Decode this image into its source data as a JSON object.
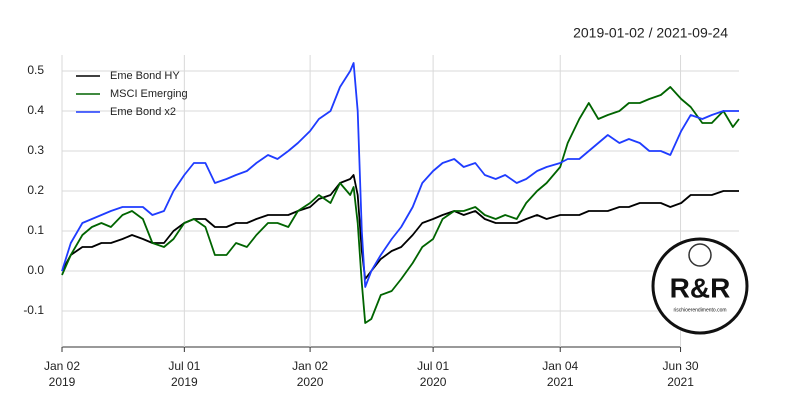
{
  "chart_data": {
    "type": "line",
    "subtitle": "2019-01-02 / 2021-09-24",
    "x": [
      "2019-01-02",
      "2019-01-15",
      "2019-02-01",
      "2019-02-15",
      "2019-03-01",
      "2019-03-15",
      "2019-04-01",
      "2019-04-15",
      "2019-05-01",
      "2019-05-15",
      "2019-06-01",
      "2019-06-15",
      "2019-07-01",
      "2019-07-15",
      "2019-08-01",
      "2019-08-15",
      "2019-09-01",
      "2019-09-15",
      "2019-10-01",
      "2019-10-15",
      "2019-11-01",
      "2019-11-15",
      "2019-12-01",
      "2019-12-15",
      "2020-01-02",
      "2020-01-15",
      "2020-02-01",
      "2020-02-15",
      "2020-03-01",
      "2020-03-06",
      "2020-03-12",
      "2020-03-18",
      "2020-03-23",
      "2020-04-01",
      "2020-04-15",
      "2020-05-01",
      "2020-05-15",
      "2020-06-01",
      "2020-06-15",
      "2020-07-01",
      "2020-07-15",
      "2020-08-01",
      "2020-08-15",
      "2020-09-01",
      "2020-09-15",
      "2020-10-01",
      "2020-10-15",
      "2020-11-01",
      "2020-11-15",
      "2020-12-01",
      "2020-12-15",
      "2021-01-04",
      "2021-01-15",
      "2021-02-01",
      "2021-02-15",
      "2021-03-01",
      "2021-03-15",
      "2021-04-01",
      "2021-04-15",
      "2021-05-01",
      "2021-05-15",
      "2021-06-01",
      "2021-06-15",
      "2021-07-01",
      "2021-07-15",
      "2021-08-01",
      "2021-08-15",
      "2021-09-01",
      "2021-09-15",
      "2021-09-24"
    ],
    "series": [
      {
        "name": "Eme Bond HY",
        "color": "#000000",
        "values": [
          0.0,
          0.04,
          0.06,
          0.06,
          0.07,
          0.07,
          0.08,
          0.09,
          0.08,
          0.07,
          0.07,
          0.1,
          0.12,
          0.13,
          0.13,
          0.11,
          0.11,
          0.12,
          0.12,
          0.13,
          0.14,
          0.14,
          0.14,
          0.15,
          0.16,
          0.18,
          0.19,
          0.22,
          0.23,
          0.24,
          0.19,
          0.05,
          -0.02,
          0.0,
          0.03,
          0.05,
          0.06,
          0.09,
          0.12,
          0.13,
          0.14,
          0.15,
          0.14,
          0.15,
          0.13,
          0.12,
          0.12,
          0.12,
          0.13,
          0.14,
          0.13,
          0.14,
          0.14,
          0.14,
          0.15,
          0.15,
          0.15,
          0.16,
          0.16,
          0.17,
          0.17,
          0.17,
          0.16,
          0.17,
          0.19,
          0.19,
          0.19,
          0.2,
          0.2,
          0.2
        ]
      },
      {
        "name": "MSCI Emerging",
        "color": "#006400",
        "values": [
          -0.01,
          0.04,
          0.09,
          0.11,
          0.12,
          0.11,
          0.14,
          0.15,
          0.13,
          0.07,
          0.06,
          0.08,
          0.12,
          0.13,
          0.11,
          0.04,
          0.04,
          0.07,
          0.06,
          0.09,
          0.12,
          0.12,
          0.11,
          0.15,
          0.17,
          0.19,
          0.17,
          0.22,
          0.19,
          0.21,
          0.12,
          -0.03,
          -0.13,
          -0.12,
          -0.06,
          -0.05,
          -0.02,
          0.02,
          0.06,
          0.08,
          0.13,
          0.15,
          0.15,
          0.16,
          0.14,
          0.13,
          0.14,
          0.13,
          0.17,
          0.2,
          0.22,
          0.26,
          0.32,
          0.38,
          0.42,
          0.38,
          0.39,
          0.4,
          0.42,
          0.42,
          0.43,
          0.44,
          0.46,
          0.43,
          0.41,
          0.37,
          0.37,
          0.4,
          0.36,
          0.38
        ]
      },
      {
        "name": "Eme Bond x2",
        "color": "#1f3cff",
        "values": [
          0.0,
          0.07,
          0.12,
          0.13,
          0.14,
          0.15,
          0.16,
          0.16,
          0.16,
          0.14,
          0.15,
          0.2,
          0.24,
          0.27,
          0.27,
          0.22,
          0.23,
          0.24,
          0.25,
          0.27,
          0.29,
          0.28,
          0.3,
          0.32,
          0.35,
          0.38,
          0.4,
          0.46,
          0.5,
          0.52,
          0.4,
          0.1,
          -0.04,
          0.0,
          0.04,
          0.08,
          0.11,
          0.16,
          0.22,
          0.25,
          0.27,
          0.28,
          0.26,
          0.27,
          0.24,
          0.23,
          0.24,
          0.22,
          0.23,
          0.25,
          0.26,
          0.27,
          0.28,
          0.28,
          0.3,
          0.32,
          0.34,
          0.32,
          0.33,
          0.32,
          0.3,
          0.3,
          0.29,
          0.35,
          0.39,
          0.38,
          0.39,
          0.4,
          0.4,
          0.4
        ]
      }
    ],
    "xlim": [
      "2019-01-02",
      "2021-09-24"
    ],
    "xticks": [
      {
        "value": "2019-01-02",
        "label": [
          "Jan 02",
          "2019"
        ]
      },
      {
        "value": "2019-07-01",
        "label": [
          "Jul 01",
          "2019"
        ]
      },
      {
        "value": "2020-01-02",
        "label": [
          "Jan 02",
          "2020"
        ]
      },
      {
        "value": "2020-07-01",
        "label": [
          "Jul 01",
          "2020"
        ]
      },
      {
        "value": "2021-01-04",
        "label": [
          "Jan 04",
          "2021"
        ]
      },
      {
        "value": "2021-06-30",
        "label": [
          "Jun 30",
          "2021"
        ]
      }
    ],
    "ylim": [
      -0.19,
      0.54
    ],
    "yticks": [
      -0.1,
      {
        "value": 0,
        "label": "0.0"
      },
      0.1,
      0.2,
      0.3,
      0.4,
      0.5
    ],
    "grid": true,
    "legend": "top-left"
  },
  "logo": {
    "text": "R&R",
    "url": "rischioerendimento.com"
  }
}
